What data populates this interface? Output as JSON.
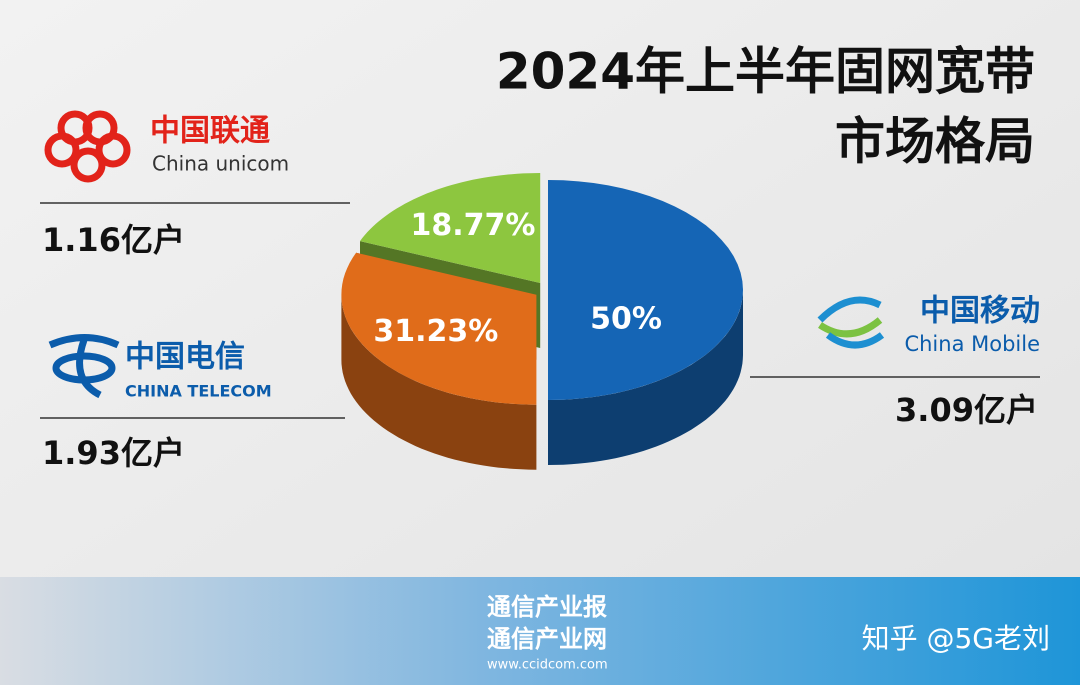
{
  "chart_data": {
    "type": "pie",
    "title": "2024年上半年固网宽带",
    "subtitle": "市场格局",
    "categories": [
      "中国移动",
      "中国电信",
      "中国联通"
    ],
    "category_subtitles": [
      "China Mobile",
      "CHINA TELECOM",
      "China unicom"
    ],
    "values": [
      50,
      31.23,
      18.77
    ],
    "value_labels": [
      "50%",
      "31.23%",
      "18.77%"
    ],
    "subscribers": [
      "3.09亿户",
      "1.93亿户",
      "1.16亿户"
    ],
    "colors": [
      "#1565b5",
      "#e06c1a",
      "#8dc63f"
    ]
  },
  "footer": {
    "brand": [
      "通信产业报",
      "通信产业网"
    ],
    "url": "www.ccidcom.com",
    "watermark": "知乎 @5G老刘"
  }
}
